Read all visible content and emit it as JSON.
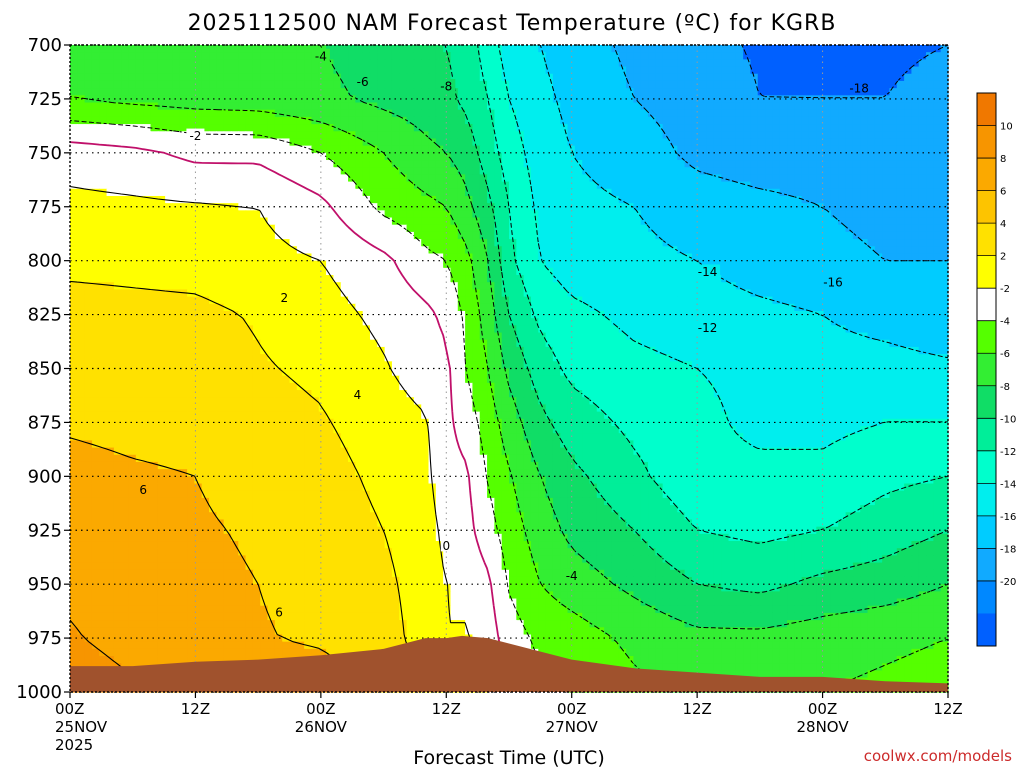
{
  "chart_data": {
    "type": "heatmap",
    "title": "2025112500 NAM Forecast Temperature (ºC) for KGRB",
    "xlabel": "Forecast Time (UTC)",
    "ylabel": "",
    "credit": "coolwx.com/models",
    "x_ticks": [
      {
        "hour": 0,
        "lines": [
          "00Z",
          "25NOV",
          "2025"
        ]
      },
      {
        "hour": 12,
        "lines": [
          "12Z"
        ]
      },
      {
        "hour": 24,
        "lines": [
          "00Z",
          "26NOV"
        ]
      },
      {
        "hour": 36,
        "lines": [
          "12Z"
        ]
      },
      {
        "hour": 48,
        "lines": [
          "00Z",
          "27NOV"
        ]
      },
      {
        "hour": 60,
        "lines": [
          "12Z"
        ]
      },
      {
        "hour": 72,
        "lines": [
          "00Z",
          "28NOV"
        ]
      },
      {
        "hour": 84,
        "lines": [
          "12Z"
        ]
      }
    ],
    "xlim": [
      0,
      84
    ],
    "y_ticks": [
      700,
      725,
      750,
      775,
      800,
      825,
      850,
      875,
      900,
      925,
      950,
      975,
      1000
    ],
    "ylim": [
      1000,
      700
    ],
    "grid": true,
    "colorbar": {
      "levels": [
        12,
        10,
        8,
        6,
        4,
        2,
        -2,
        -4,
        -6,
        -8,
        -10,
        -12,
        -14,
        -16,
        -18,
        -20,
        -22
      ],
      "tick_labels": [
        "10",
        "8",
        "6",
        "4",
        "2",
        "-2",
        "-4",
        "-6",
        "-8",
        "-10",
        "-12",
        "-14",
        "-16",
        "-18",
        "-20"
      ],
      "colors": [
        "#f07800",
        "#f79500",
        "#fba900",
        "#fdc400",
        "#ffe100",
        "#ffff00",
        "#ffffff",
        "#55ff00",
        "#33ee33",
        "#10dd66",
        "#00ee99",
        "#00ffcc",
        "#00eeee",
        "#00ccff",
        "#11aaff",
        "#0088ff",
        "#0060ff"
      ]
    },
    "ground_color": "#a0522d",
    "surface_pressure": [
      [
        0,
        988
      ],
      [
        6,
        988
      ],
      [
        12,
        986
      ],
      [
        18,
        985
      ],
      [
        24,
        983
      ],
      [
        30,
        980
      ],
      [
        34,
        975
      ],
      [
        36,
        975
      ],
      [
        37.5,
        974
      ],
      [
        40,
        975
      ],
      [
        44,
        980
      ],
      [
        48,
        985
      ],
      [
        54,
        989
      ],
      [
        60,
        991
      ],
      [
        66,
        993
      ],
      [
        72,
        993
      ],
      [
        78,
        995
      ],
      [
        84,
        996
      ]
    ],
    "profiles": [
      {
        "hour": 0,
        "temps": {
          "700": -5,
          "725": -4,
          "750": 1,
          "775": 2.6,
          "800": 3.5,
          "825": 4.8,
          "850": 5.4,
          "875": 5.8,
          "900": 6.5,
          "925": 7.0,
          "950": 7.6,
          "975": 8.2
        }
      },
      {
        "hour": 6,
        "temps": {
          "700": -5,
          "725": -4.5,
          "750": 0.5,
          "775": 2.4,
          "800": 3.4,
          "825": 4.6,
          "850": 5.1,
          "875": 5.6,
          "900": 6.2,
          "925": 6.6,
          "950": 7.0,
          "975": 7.3
        }
      },
      {
        "hour": 12,
        "temps": {
          "700": -5.5,
          "725": -4.8,
          "750": -0.5,
          "775": 2.2,
          "800": 3.2,
          "825": 4.5,
          "850": 5.0,
          "875": 5.5,
          "900": 6.0,
          "925": 6.2,
          "950": 6.4,
          "975": 6.5
        }
      },
      {
        "hour": 18,
        "temps": {
          "700": -5.5,
          "725": -5,
          "750": -0.5,
          "775": 2.0,
          "800": 2.6,
          "825": 3.8,
          "850": 4.2,
          "875": 4.8,
          "900": 5.4,
          "925": 5.8,
          "950": 6.0,
          "975": 6.1
        }
      },
      {
        "hour": 24,
        "temps": {
          "700": -6,
          "725": -5.5,
          "750": -2,
          "775": 0.5,
          "800": 2.0,
          "825": 2.8,
          "850": 3.6,
          "875": 4.2,
          "900": 4.8,
          "925": 5.2,
          "950": 5.6,
          "975": 5.8
        }
      },
      {
        "hour": 30,
        "temps": {
          "700": -7,
          "725": -6.5,
          "750": -4,
          "775": -2.5,
          "800": 0.5,
          "825": 1.5,
          "850": 2.2,
          "875": 3.0,
          "900": 3.5,
          "925": 4.0,
          "950": 4.5,
          "975": 5.0
        }
      },
      {
        "hour": 34,
        "temps": {
          "700": -7.5,
          "725": -7,
          "750": -5.5,
          "775": -3.5,
          "800": -1.5,
          "825": 0.5,
          "850": 1.0,
          "875": 2.2,
          "900": 2.5,
          "925": 2.8,
          "950": 3.0,
          "975": 3.0
        }
      },
      {
        "hour": 36,
        "temps": {
          "700": -8,
          "725": -7.5,
          "750": -6,
          "775": -4,
          "800": -2,
          "825": -0.5,
          "850": 0.5,
          "875": 0.5,
          "900": 0.8,
          "925": 1.5,
          "950": 2.0,
          "975": 2.0
        }
      },
      {
        "hour": 38,
        "temps": {
          "700": -9,
          "725": -8.5,
          "750": -7,
          "775": -5.5,
          "800": -3.5,
          "825": -2.5,
          "850": -2.2,
          "875": -1,
          "900": 0.3,
          "925": 0.6,
          "950": 1.5,
          "975": 2.2
        }
      },
      {
        "hour": 40,
        "temps": {
          "700": -11,
          "725": -10,
          "750": -9,
          "775": -7.5,
          "800": -6,
          "825": -5,
          "850": -4,
          "875": -3,
          "900": -2.2,
          "925": -1.2,
          "950": 0.4,
          "975": 1.0
        }
      },
      {
        "hour": 42,
        "temps": {
          "700": -13,
          "725": -12,
          "750": -11,
          "775": -10,
          "800": -9.5,
          "825": -8,
          "850": -6.5,
          "875": -5,
          "900": -3.8,
          "925": -3,
          "950": -2.2,
          "975": -1
        }
      },
      {
        "hour": 45,
        "temps": {
          "700": -14,
          "725": -13.5,
          "750": -13,
          "775": -12.5,
          "800": -12,
          "825": -10.5,
          "850": -9,
          "875": -7.5,
          "900": -6,
          "925": -5,
          "950": -4,
          "975": -2.5
        }
      },
      {
        "hour": 48,
        "temps": {
          "700": -15,
          "725": -14.5,
          "750": -14,
          "775": -13.5,
          "800": -13,
          "825": -11.5,
          "850": -10.5,
          "875": -9,
          "900": -7.5,
          "925": -6.5,
          "950": -5,
          "975": -3
        }
      },
      {
        "hour": 54,
        "temps": {
          "700": -16.5,
          "725": -16,
          "750": -15,
          "775": -14,
          "800": -13.5,
          "825": -12.5,
          "850": -11.5,
          "875": -10.5,
          "900": -9.5,
          "925": -8,
          "950": -6.5,
          "975": -4.5
        }
      },
      {
        "hour": 60,
        "temps": {
          "700": -17.5,
          "725": -17,
          "750": -16.5,
          "775": -15,
          "800": -14,
          "825": -13,
          "850": -12,
          "875": -11.5,
          "900": -11.5,
          "925": -10,
          "950": -8,
          "975": -5.5
        }
      },
      {
        "hour": 66,
        "temps": {
          "700": -18.2,
          "725": -18,
          "750": -17,
          "775": -15.5,
          "800": -15,
          "825": -13.5,
          "850": -12.5,
          "875": -12.5,
          "900": -11.5,
          "925": -10.5,
          "950": -8.5,
          "975": -5.5
        }
      },
      {
        "hour": 72,
        "temps": {
          "700": -18.5,
          "725": -18,
          "750": -17,
          "775": -16,
          "800": -15.5,
          "825": -14,
          "850": -13,
          "875": -12.5,
          "900": -11.5,
          "925": -10,
          "950": -7.5,
          "975": -5
        }
      },
      {
        "hour": 78,
        "temps": {
          "700": -18.5,
          "725": -18,
          "750": -17,
          "775": -16.5,
          "800": -16,
          "825": -15,
          "850": -13,
          "875": -12,
          "900": -10.5,
          "925": -9,
          "950": -7,
          "975": -4.5
        }
      },
      {
        "hour": 84,
        "temps": {
          "700": -18,
          "725": -17,
          "750": -16.5,
          "775": -16.2,
          "800": -16,
          "825": -16,
          "850": -13.5,
          "875": -12,
          "900": -10,
          "925": -8,
          "950": -6,
          "975": -4
        }
      }
    ],
    "contour_labels": [
      {
        "text": "-4",
        "hour": 24,
        "pressure": 705
      },
      {
        "text": "-6",
        "hour": 28,
        "pressure": 717
      },
      {
        "text": "-8",
        "hour": 36,
        "pressure": 719
      },
      {
        "text": "-2",
        "hour": 12,
        "pressure": 742
      },
      {
        "text": "-18",
        "hour": 75.5,
        "pressure": 720
      },
      {
        "text": "-14",
        "hour": 61,
        "pressure": 805
      },
      {
        "text": "-16",
        "hour": 73,
        "pressure": 810
      },
      {
        "text": "-12",
        "hour": 61,
        "pressure": 831
      },
      {
        "text": "2",
        "hour": 20.5,
        "pressure": 817
      },
      {
        "text": "4",
        "hour": 27.5,
        "pressure": 862
      },
      {
        "text": "6",
        "hour": 7,
        "pressure": 906
      },
      {
        "text": "6",
        "hour": 20,
        "pressure": 963
      },
      {
        "text": "0",
        "hour": 36,
        "pressure": 932
      },
      {
        "text": "-4",
        "hour": 48,
        "pressure": 946
      }
    ]
  }
}
